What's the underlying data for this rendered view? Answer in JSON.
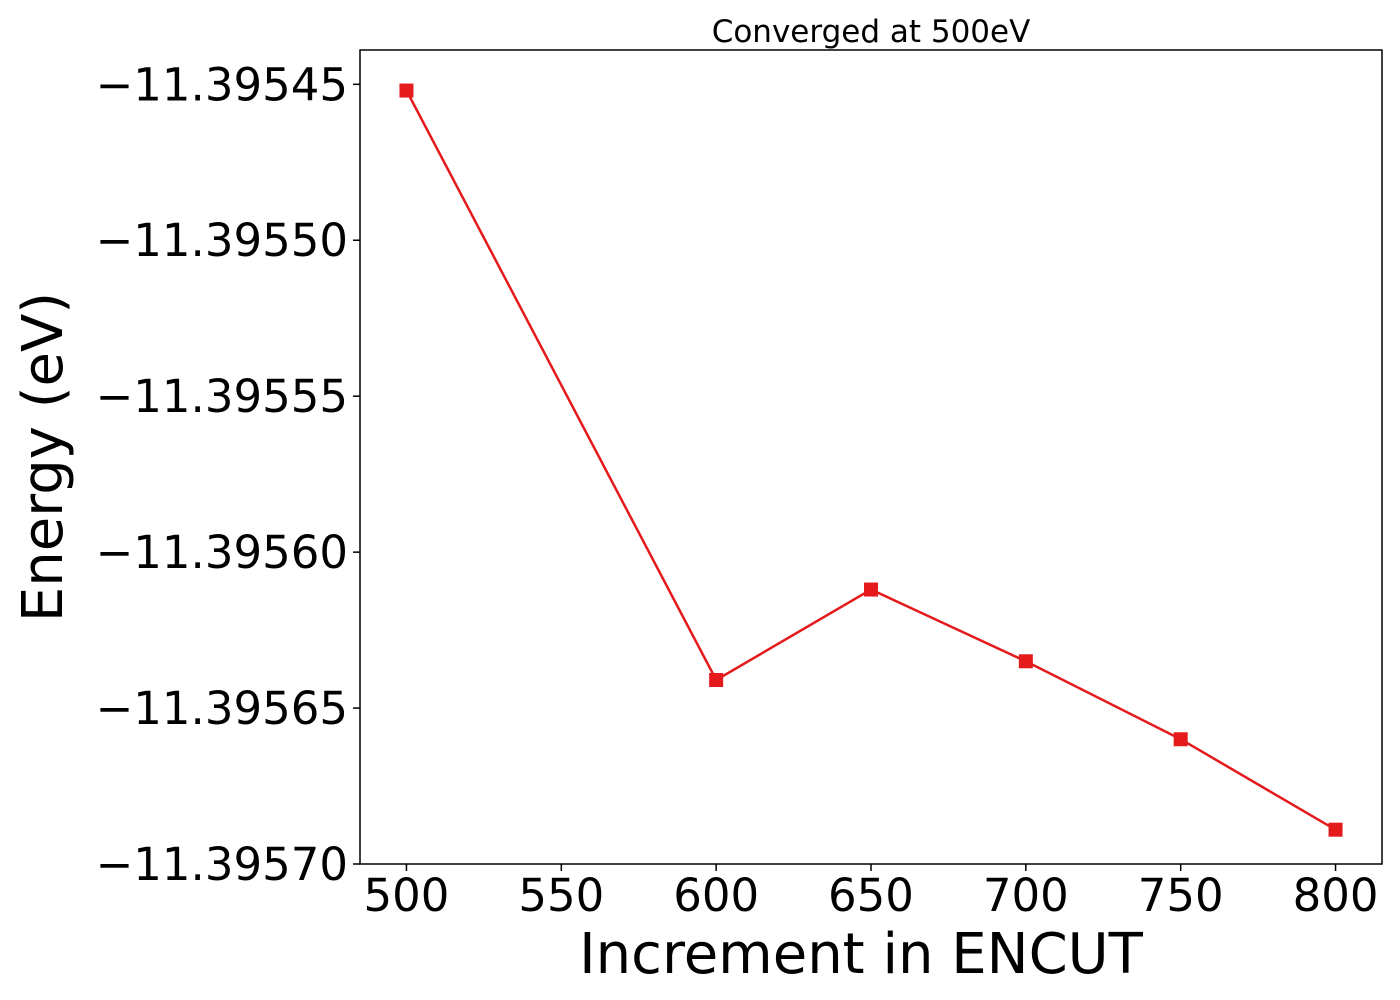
{
  "chart_data": {
    "type": "line",
    "title": "Converged at 500eV",
    "xlabel": "Increment in ENCUT",
    "ylabel": "Energy (eV)",
    "x": [
      500,
      600,
      650,
      700,
      750,
      800
    ],
    "series": [
      {
        "name": "",
        "values": [
          -11.395452,
          -11.395641,
          -11.395612,
          -11.395635,
          -11.39566,
          -11.395689
        ],
        "color": "#e41a1c",
        "marker": "square"
      }
    ],
    "xticks": [
      500,
      550,
      600,
      650,
      700,
      750,
      800
    ],
    "xtick_labels": [
      "500",
      "550",
      "600",
      "650",
      "700",
      "750",
      "800"
    ],
    "yticks": [
      -11.39545,
      -11.3955,
      -11.39555,
      -11.3956,
      -11.39565,
      -11.3957
    ],
    "ytick_labels": [
      "−11.39545",
      "−11.39550",
      "−11.39555",
      "−11.39560",
      "−11.39565",
      "−11.39570"
    ],
    "xlim": [
      485,
      815
    ],
    "ylim": [
      -11.3957,
      -11.395439
    ],
    "grid": false,
    "legend": "none"
  }
}
